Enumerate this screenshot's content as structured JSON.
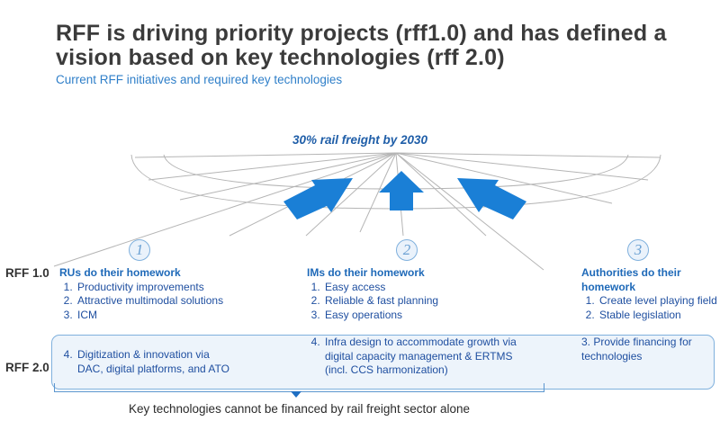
{
  "title": "RFF is driving priority projects (rff1.0) and has defined a vision based on key technologies (rff 2.0)",
  "subtitle": "Current RFF initiatives and required key technologies",
  "goal": "30% rail freight by 2030",
  "rows": {
    "rff1": "RFF 1.0",
    "rff2": "RFF 2.0"
  },
  "columns": [
    {
      "number": "1",
      "heading": "RUs do their homework",
      "rff1_items": [
        "Productivity improvements",
        "Attractive multimodal solutions",
        "ICM"
      ],
      "rff2_items": [
        "Digitization & innovation via DAC, digital platforms, and ATO"
      ]
    },
    {
      "number": "2",
      "heading": "IMs do their homework",
      "rff1_items": [
        "Easy access",
        "Reliable & fast planning",
        "Easy operations"
      ],
      "rff2_items": [
        "Infra design to accommodate growth via digital capacity management & ERTMS (incl. CCS harmonization)"
      ]
    },
    {
      "number": "3",
      "heading": "Authorities do their homework",
      "rff1_items": [
        "Create level playing field",
        "Stable legislation"
      ],
      "rff2_text": "3. Provide financing for technologies"
    }
  ],
  "footer": "Key technologies cannot be financed by rail freight sector alone",
  "colors": {
    "accent": "#1e69b8",
    "arrow": "#1a7fd6",
    "box": "#edf4fb",
    "title": "#3b3b3b"
  }
}
